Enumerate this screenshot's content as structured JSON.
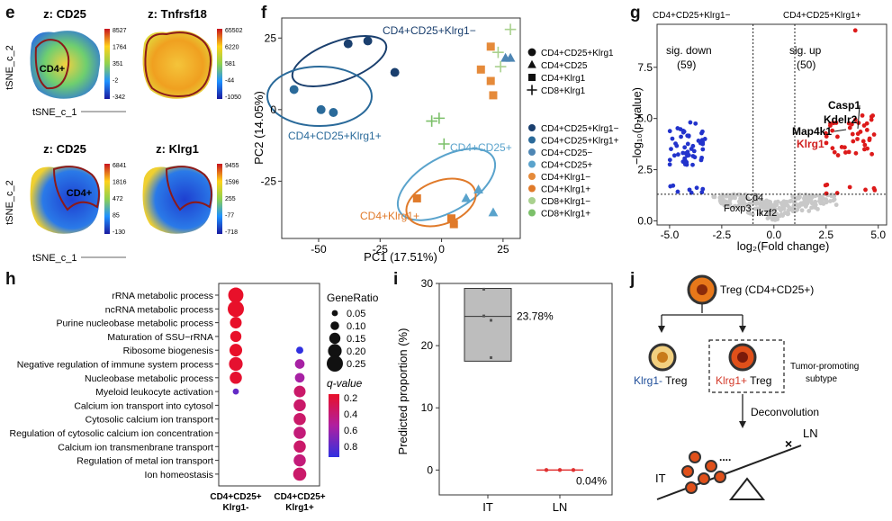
{
  "panel_letters": {
    "e": "e",
    "f": "f",
    "g": "g",
    "h": "h",
    "i": "i",
    "j": "j"
  },
  "panel_e": {
    "ylabel": "tSNE_c_2",
    "xlabel": "tSNE_c_1",
    "plots": [
      {
        "title": "z: CD25",
        "region": "CD4+",
        "ticks": [
          "8527",
          "1764",
          "351",
          "-2",
          "-342"
        ]
      },
      {
        "title": "z: Tnfrsf18",
        "region": "",
        "ticks": [
          "65502",
          "6220",
          "581",
          "-44",
          "-1050"
        ]
      },
      {
        "title": "z: CD25",
        "region": "CD4+",
        "ticks": [
          "6841",
          "1816",
          "472",
          "85",
          "-130"
        ]
      },
      {
        "title": "z: Klrg1",
        "region": "",
        "ticks": [
          "9455",
          "1596",
          "255",
          "-77",
          "-718"
        ]
      }
    ]
  },
  "chart_data": [
    {
      "panel": "f",
      "type": "scatter",
      "xlabel": "PC1 (17.51%)",
      "ylabel": "PC2 (14.05%)",
      "xlim": [
        -65,
        32
      ],
      "ylim": [
        -45,
        32
      ],
      "xticks": [
        "-50",
        "-25",
        "0",
        "25"
      ],
      "yticks": [
        "25",
        "0",
        "-25"
      ],
      "shape_legend": [
        "CD4+CD25+Klrg1",
        "CD4+CD25",
        "CD4+Klrg1",
        "CD8+Klrg1"
      ],
      "color_legend": [
        {
          "name": "CD4+CD25+Klrg1−",
          "color": "#1a3f6e"
        },
        {
          "name": "CD4+CD25+Klrg1+",
          "color": "#2a6a9a"
        },
        {
          "name": "CD4+CD25−",
          "color": "#4e86b4"
        },
        {
          "name": "CD4+CD25+",
          "color": "#5aa3cc"
        },
        {
          "name": "CD4+Klrg1−",
          "color": "#e58a3a"
        },
        {
          "name": "CD4+Klrg1+",
          "color": "#e07a2a"
        },
        {
          "name": "CD8+Klrg1−",
          "color": "#a9d18e"
        },
        {
          "name": "CD8+Klrg1+",
          "color": "#7cc06a"
        }
      ],
      "group_labels": [
        {
          "text": "CD4+CD25+Klrg1−",
          "color": "#1a3f6e"
        },
        {
          "text": "CD4+CD25+Klrg1+",
          "color": "#2a6a9a"
        },
        {
          "text": "CD4+CD25+",
          "color": "#5aa3cc"
        },
        {
          "text": "CD4+Klrg1+",
          "color": "#e07a2a"
        }
      ],
      "points": [
        {
          "x": -38,
          "y": 23,
          "shape": "circle",
          "color": "#1a3f6e"
        },
        {
          "x": -30,
          "y": 24,
          "shape": "circle",
          "color": "#1a3f6e"
        },
        {
          "x": -19,
          "y": 13,
          "shape": "circle",
          "color": "#1a3f6e"
        },
        {
          "x": -60,
          "y": 7,
          "shape": "circle",
          "color": "#2a6a9a"
        },
        {
          "x": -44,
          "y": -1,
          "shape": "circle",
          "color": "#2a6a9a"
        },
        {
          "x": -49,
          "y": 0,
          "shape": "circle",
          "color": "#2a6a9a"
        },
        {
          "x": 15,
          "y": -28,
          "shape": "triangle",
          "color": "#5aa3cc"
        },
        {
          "x": 10,
          "y": -31,
          "shape": "triangle",
          "color": "#5aa3cc"
        },
        {
          "x": 21,
          "y": -36,
          "shape": "triangle",
          "color": "#5aa3cc"
        },
        {
          "x": -10,
          "y": -31,
          "shape": "square",
          "color": "#e07a2a"
        },
        {
          "x": 4,
          "y": -38,
          "shape": "square",
          "color": "#e07a2a"
        },
        {
          "x": 5,
          "y": -40,
          "shape": "square",
          "color": "#e07a2a"
        },
        {
          "x": 20,
          "y": 22,
          "shape": "square",
          "color": "#e58a3a"
        },
        {
          "x": 16,
          "y": 14,
          "shape": "square",
          "color": "#e58a3a"
        },
        {
          "x": 20,
          "y": 10,
          "shape": "square",
          "color": "#e58a3a"
        },
        {
          "x": 21,
          "y": 5,
          "shape": "square",
          "color": "#e58a3a"
        },
        {
          "x": 26,
          "y": 18,
          "shape": "triangle",
          "color": "#4e86b4"
        },
        {
          "x": 28,
          "y": 18,
          "shape": "triangle",
          "color": "#4e86b4"
        },
        {
          "x": 28,
          "y": 28,
          "shape": "plus",
          "color": "#a9d18e"
        },
        {
          "x": 23,
          "y": 20,
          "shape": "plus",
          "color": "#a9d18e"
        },
        {
          "x": 24,
          "y": 15,
          "shape": "plus",
          "color": "#a9d18e"
        },
        {
          "x": -1,
          "y": -3,
          "shape": "plus",
          "color": "#7cc06a"
        },
        {
          "x": -4,
          "y": -4,
          "shape": "plus",
          "color": "#7cc06a"
        },
        {
          "x": 1,
          "y": -12,
          "shape": "plus",
          "color": "#7cc06a"
        }
      ]
    },
    {
      "panel": "g",
      "type": "scatter",
      "xlabel": "log₂(Fold change)",
      "ylabel": "−log₁₀(p-value)",
      "xlim": [
        -5.6,
        5.4
      ],
      "ylim": [
        -0.2,
        9.6
      ],
      "xticks": [
        "-5.0",
        "-2.5",
        "0.0",
        "2.5",
        "5.0"
      ],
      "yticks": [
        "0.0",
        "2.5",
        "5.0",
        "7.5"
      ],
      "left_title": "CD4+CD25+Klrg1−",
      "right_title": "CD4+CD25+Klrg1+",
      "annotations": [
        "sig. down",
        "(59)",
        "sig. up",
        "(50)"
      ],
      "gene_labels": [
        {
          "text": "Casp1",
          "color": "#111"
        },
        {
          "text": "Kdelr2",
          "color": "#111"
        },
        {
          "text": "Map4k1",
          "color": "#111"
        },
        {
          "text": "Klrg1",
          "color": "#d02020"
        },
        {
          "text": "Cd4",
          "color": "#111"
        },
        {
          "text": "Foxp3",
          "color": "#111"
        },
        {
          "text": "Ikzf2",
          "color": "#111"
        }
      ],
      "colors": {
        "down": "#2233cc",
        "up": "#dd1a1a",
        "ns": "#c8c8c8"
      }
    },
    {
      "panel": "h",
      "type": "dot",
      "x_categories": [
        "CD4+CD25+\nKlrg1-",
        "CD4+CD25+\nKlrg1+"
      ],
      "terms": [
        "rRNA metabolic process",
        "ncRNA metabolic process",
        "Purine nucleobase metabolic process",
        "Maturation of SSU−rRNA",
        "Ribosome biogenesis",
        "Negative regulation of  immune system process",
        "Nucleobase metabolic process",
        "Myeloid leukocyte activation",
        "Calcium ion transport into cytosol",
        "Cytosolic calcium ion transport",
        "Regulation of cytosolic calcium ion concentration",
        "Calcium ion transmenbrane transport",
        "Regulation of metal ion transport",
        "Ion homeostasis"
      ],
      "size_legend_title": "GeneRatio",
      "size_legend": [
        "0.05",
        "0.10",
        "0.15",
        "0.20",
        "0.25"
      ],
      "color_legend_title": "q-value",
      "color_legend": [
        "0.2",
        "0.4",
        "0.6",
        "0.8"
      ],
      "dots": [
        {
          "term": 0,
          "col": 0,
          "ratio": 0.23,
          "q": 0.08
        },
        {
          "term": 1,
          "col": 0,
          "ratio": 0.25,
          "q": 0.08
        },
        {
          "term": 2,
          "col": 0,
          "ratio": 0.16,
          "q": 0.1
        },
        {
          "term": 3,
          "col": 0,
          "ratio": 0.15,
          "q": 0.1
        },
        {
          "term": 4,
          "col": 0,
          "ratio": 0.18,
          "q": 0.1
        },
        {
          "term": 5,
          "col": 0,
          "ratio": 0.2,
          "q": 0.12
        },
        {
          "term": 6,
          "col": 0,
          "ratio": 0.17,
          "q": 0.12
        },
        {
          "term": 7,
          "col": 0,
          "ratio": 0.05,
          "q": 0.7
        },
        {
          "term": 4,
          "col": 1,
          "ratio": 0.07,
          "q": 0.9
        },
        {
          "term": 5,
          "col": 1,
          "ratio": 0.12,
          "q": 0.5
        },
        {
          "term": 6,
          "col": 1,
          "ratio": 0.12,
          "q": 0.5
        },
        {
          "term": 7,
          "col": 1,
          "ratio": 0.16,
          "q": 0.3
        },
        {
          "term": 8,
          "col": 1,
          "ratio": 0.17,
          "q": 0.3
        },
        {
          "term": 9,
          "col": 1,
          "ratio": 0.17,
          "q": 0.3
        },
        {
          "term": 10,
          "col": 1,
          "ratio": 0.17,
          "q": 0.35
        },
        {
          "term": 11,
          "col": 1,
          "ratio": 0.17,
          "q": 0.3
        },
        {
          "term": 12,
          "col": 1,
          "ratio": 0.17,
          "q": 0.35
        },
        {
          "term": 13,
          "col": 1,
          "ratio": 0.19,
          "q": 0.3
        }
      ]
    },
    {
      "panel": "i",
      "type": "box",
      "ylabel": "Predicted proportion (%)",
      "categories": [
        "IT",
        "LN"
      ],
      "ylim": [
        -4,
        30
      ],
      "yticks": [
        "30",
        "20",
        "10",
        "0"
      ],
      "boxes": [
        {
          "cat": "IT",
          "q1": 17.5,
          "median": 24.7,
          "q3": 29.2,
          "label": "23.78%",
          "points": [
            24.7,
            24,
            29,
            18
          ]
        },
        {
          "cat": "LN",
          "q1": 0,
          "median": 0,
          "q3": 0,
          "label": "0.04%",
          "points": [
            0,
            0,
            0
          ]
        }
      ]
    }
  ],
  "panel_j": {
    "treg_label": "Treg (CD4+CD25+)",
    "left_cell": {
      "colored": "Klrg1-",
      "rest": " Treg",
      "color": "#1f4e9a"
    },
    "right_cell": {
      "colored": "Klrg1+",
      "rest": " Treg",
      "color": "#d43a2a"
    },
    "side_note_1": "Tumor-promoting",
    "side_note_2": "subtype",
    "deconvolution": "Deconvolution",
    "it_label": "IT",
    "ln_label": "LN",
    "x_mark": "×",
    "dots": "...."
  }
}
